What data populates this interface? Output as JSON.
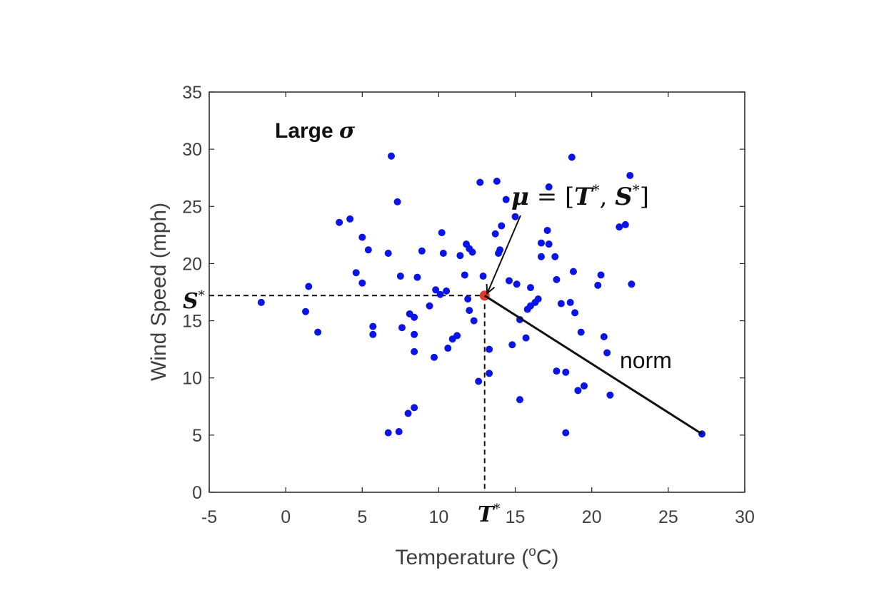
{
  "chart_data": {
    "type": "scatter",
    "xlabel": "Temperature (°C)",
    "xlabel_parts": {
      "base": "Temperature (",
      "sup": "o",
      "tail": "C)"
    },
    "ylabel": "Wind Speed (mph)",
    "xlim": [
      -5,
      30
    ],
    "ylim": [
      0,
      35
    ],
    "xticks": [
      -5,
      0,
      5,
      10,
      15,
      20,
      25,
      30
    ],
    "yticks": [
      0,
      5,
      10,
      15,
      20,
      25,
      30,
      35
    ],
    "grid": false,
    "point_color": "#0a14e6",
    "mean_color": "#e03a2a",
    "points": [
      [
        -1.6,
        16.6
      ],
      [
        1.3,
        15.8
      ],
      [
        1.5,
        18.0
      ],
      [
        2.1,
        14.0
      ],
      [
        3.5,
        23.6
      ],
      [
        4.2,
        23.9
      ],
      [
        4.6,
        19.2
      ],
      [
        5.0,
        18.3
      ],
      [
        5.0,
        22.3
      ],
      [
        5.4,
        21.2
      ],
      [
        5.7,
        14.5
      ],
      [
        5.7,
        13.8
      ],
      [
        6.7,
        20.9
      ],
      [
        6.9,
        29.4
      ],
      [
        7.3,
        25.4
      ],
      [
        7.5,
        18.9
      ],
      [
        7.6,
        14.4
      ],
      [
        8.1,
        15.6
      ],
      [
        8.4,
        15.3
      ],
      [
        8.4,
        13.8
      ],
      [
        8.4,
        12.3
      ],
      [
        8.6,
        18.8
      ],
      [
        8.9,
        21.1
      ],
      [
        9.4,
        16.3
      ],
      [
        9.7,
        11.8
      ],
      [
        9.8,
        17.7
      ],
      [
        10.1,
        17.3
      ],
      [
        10.2,
        22.7
      ],
      [
        10.3,
        20.9
      ],
      [
        10.5,
        17.6
      ],
      [
        10.6,
        12.6
      ],
      [
        10.9,
        13.4
      ],
      [
        11.2,
        13.7
      ],
      [
        11.4,
        20.7
      ],
      [
        11.7,
        19.0
      ],
      [
        11.9,
        16.9
      ],
      [
        11.8,
        21.7
      ],
      [
        12.0,
        15.9
      ],
      [
        12.0,
        21.3
      ],
      [
        12.2,
        21.0
      ],
      [
        12.3,
        15.0
      ],
      [
        12.7,
        27.1
      ],
      [
        12.6,
        9.7
      ],
      [
        12.9,
        18.9
      ],
      [
        13.3,
        12.5
      ],
      [
        13.3,
        10.4
      ],
      [
        13.7,
        22.6
      ],
      [
        13.8,
        27.2
      ],
      [
        14.0,
        21.2
      ],
      [
        13.9,
        20.9
      ],
      [
        14.1,
        23.3
      ],
      [
        14.4,
        25.6
      ],
      [
        14.6,
        18.5
      ],
      [
        14.8,
        12.9
      ],
      [
        15.0,
        24.1
      ],
      [
        15.1,
        18.2
      ],
      [
        15.3,
        8.1
      ],
      [
        15.3,
        15.1
      ],
      [
        15.7,
        13.5
      ],
      [
        15.8,
        16.0
      ],
      [
        16.0,
        17.9
      ],
      [
        16.0,
        16.3
      ],
      [
        16.3,
        16.6
      ],
      [
        16.5,
        16.9
      ],
      [
        16.7,
        21.8
      ],
      [
        16.7,
        20.6
      ],
      [
        17.1,
        22.9
      ],
      [
        17.2,
        21.7
      ],
      [
        17.2,
        26.7
      ],
      [
        17.6,
        20.6
      ],
      [
        17.7,
        18.6
      ],
      [
        17.7,
        10.6
      ],
      [
        18.0,
        16.5
      ],
      [
        18.3,
        10.5
      ],
      [
        18.3,
        5.2
      ],
      [
        18.6,
        16.6
      ],
      [
        18.7,
        29.3
      ],
      [
        18.8,
        19.3
      ],
      [
        18.9,
        15.7
      ],
      [
        19.1,
        8.9
      ],
      [
        19.3,
        14.0
      ],
      [
        19.5,
        9.3
      ],
      [
        20.4,
        18.1
      ],
      [
        20.6,
        19.0
      ],
      [
        20.8,
        13.6
      ],
      [
        21.0,
        12.2
      ],
      [
        21.2,
        8.5
      ],
      [
        21.8,
        23.2
      ],
      [
        22.2,
        23.4
      ],
      [
        22.5,
        27.7
      ],
      [
        22.6,
        18.2
      ],
      [
        6.7,
        5.2
      ],
      [
        7.4,
        5.3
      ],
      [
        8.0,
        6.9
      ],
      [
        8.4,
        7.4
      ],
      [
        27.2,
        5.1
      ]
    ],
    "mean_point": [
      13.0,
      17.2
    ],
    "norm_end": [
      27.2,
      5.1
    ],
    "annotations": {
      "title_word": "Large ",
      "sigma": "σ",
      "mu_label": "μ = [T*, S*]",
      "mu_parts": {
        "mu": "μ",
        "eq": " = [",
        "t": "T",
        "star1": "*",
        "comma": ", ",
        "s": "S",
        "star2": "*",
        "close": "]"
      },
      "t_star": {
        "letter": "T",
        "star": "*"
      },
      "s_star": {
        "letter": "S",
        "star": "*"
      },
      "norm": "norm"
    }
  }
}
